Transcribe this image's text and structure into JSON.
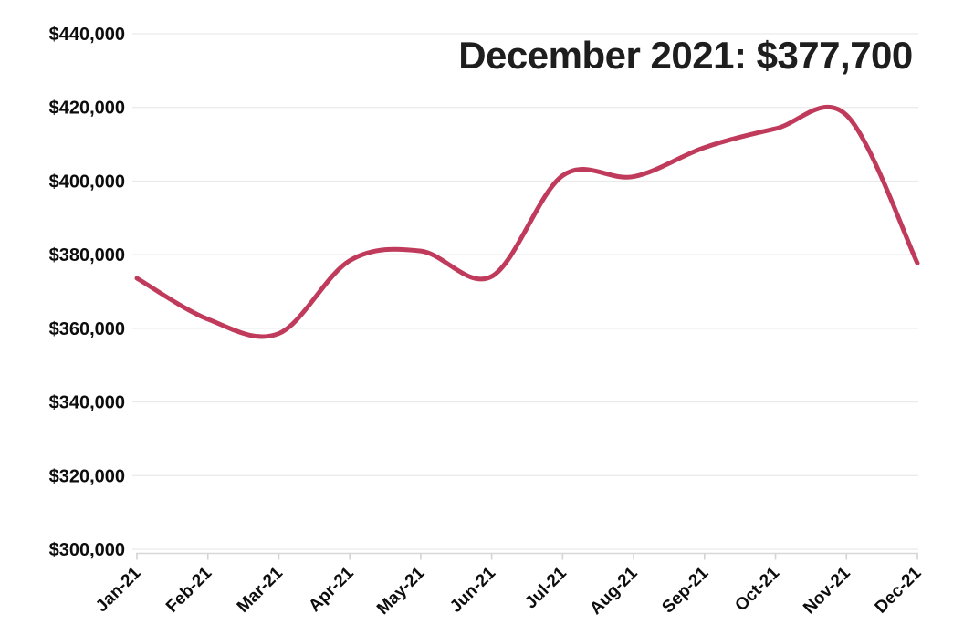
{
  "chart_data": {
    "type": "line",
    "title": "December 2021: $377,700",
    "categories": [
      "Jan-21",
      "Feb-21",
      "Mar-21",
      "Apr-21",
      "May-21",
      "Jun-21",
      "Jul-21",
      "Aug-21",
      "Sep-21",
      "Oct-21",
      "Nov-21",
      "Dec-21"
    ],
    "values": [
      373600,
      362500,
      358600,
      378400,
      381000,
      374100,
      401500,
      401200,
      409100,
      414200,
      417900,
      377700
    ],
    "xlabel": "",
    "ylabel": "",
    "ylim": [
      300000,
      440000
    ],
    "ytick_step": 20000,
    "ytick_labels": [
      "$300,000",
      "$320,000",
      "$340,000",
      "$360,000",
      "$380,000",
      "$400,000",
      "$420,000",
      "$440,000"
    ],
    "grid": "horizontal-only",
    "legend": "none",
    "line_color": "#bf3a5b"
  },
  "colors": {
    "line": "#bf3a5b",
    "gridline": "#eaeaea",
    "axis_line": "#d8d8d8",
    "tick": "#d4d4d4",
    "label_text": "#0d0d0d",
    "title_text": "#1e1e1e",
    "background": "#ffffff"
  }
}
